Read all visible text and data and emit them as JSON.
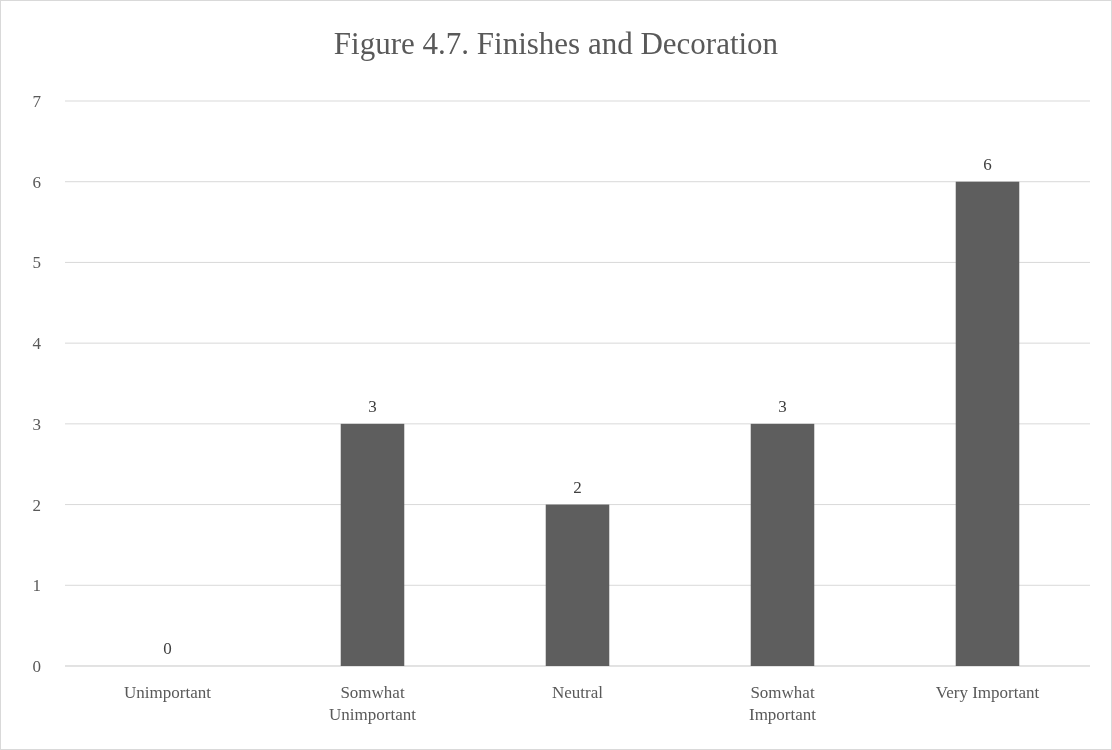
{
  "chart_data": {
    "type": "bar",
    "title": "Figure 4.7. Finishes and Decoration",
    "categories": [
      "Unimportant",
      "Somwhat Unimportant",
      "Neutral",
      "Somwhat Important",
      "Very Important"
    ],
    "values": [
      0,
      3,
      2,
      3,
      6
    ],
    "color": "#5e5e5e",
    "ylim": [
      0,
      7
    ],
    "yticks": [
      0,
      1,
      2,
      3,
      4,
      5,
      6,
      7
    ],
    "grid": "y",
    "data_labels": true
  }
}
